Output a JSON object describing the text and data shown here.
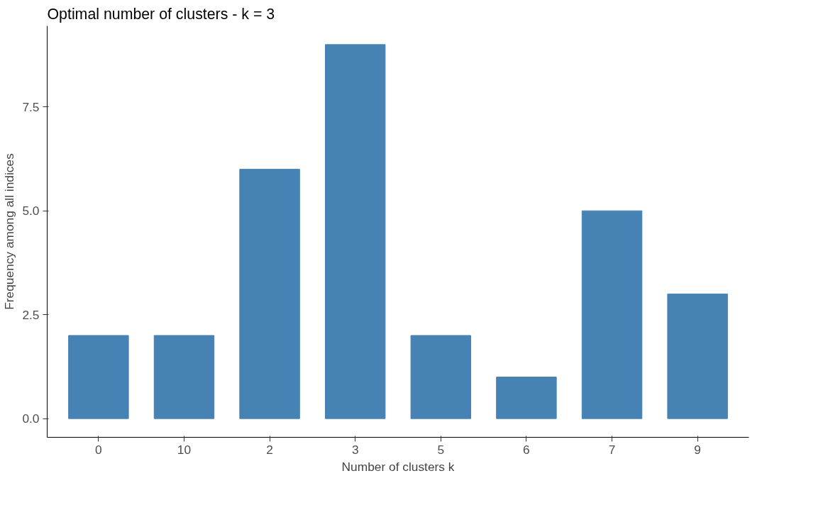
{
  "chart_data": {
    "type": "bar",
    "title": "Optimal number of clusters - k = 3",
    "xlabel": "Number of clusters k",
    "ylabel": "Frequency among all indices",
    "categories": [
      "0",
      "10",
      "2",
      "3",
      "5",
      "6",
      "7",
      "9"
    ],
    "values": [
      2,
      2,
      6,
      9,
      2,
      1,
      5,
      3
    ],
    "color": "#4682b4",
    "ylim": [
      -0.45,
      9.45
    ],
    "yticks": [
      {
        "value": 0,
        "label": "0.0"
      },
      {
        "value": 2.5,
        "label": "2.5"
      },
      {
        "value": 5,
        "label": "5.0"
      },
      {
        "value": 7.5,
        "label": "7.5"
      }
    ],
    "grid": false
  }
}
